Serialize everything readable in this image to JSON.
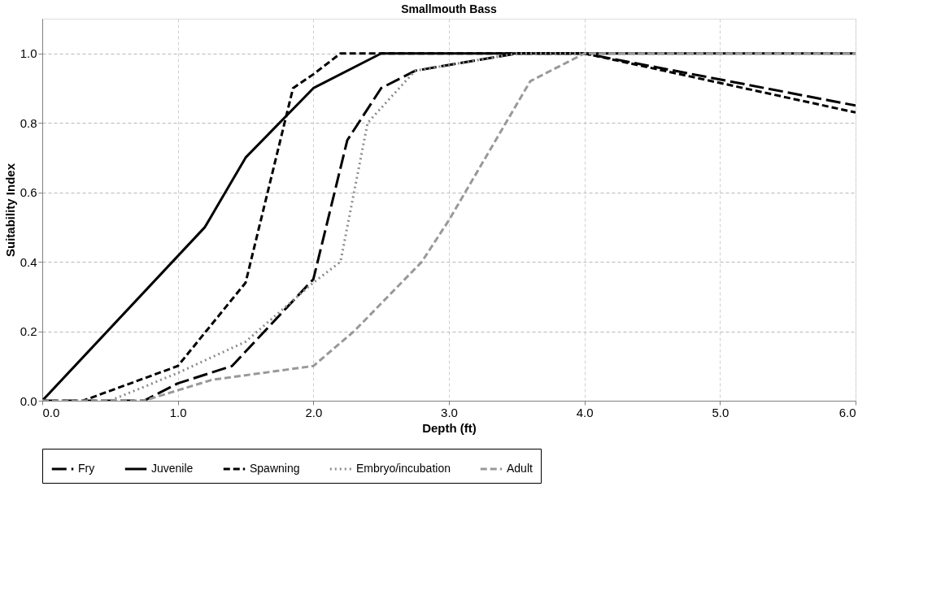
{
  "chart_data": {
    "type": "line",
    "title": "Smallmouth Bass",
    "xlabel": "Depth (ft)",
    "ylabel": "Suitability Index",
    "xlim": [
      0,
      6
    ],
    "ylim": [
      0,
      1.1
    ],
    "xticks": [
      {
        "value": 0,
        "label": "0.0"
      },
      {
        "value": 1,
        "label": "1.0"
      },
      {
        "value": 2,
        "label": "2.0"
      },
      {
        "value": 3,
        "label": "3.0"
      },
      {
        "value": 4,
        "label": "4.0"
      },
      {
        "value": 5,
        "label": "5.0"
      },
      {
        "value": 6,
        "label": "6.0"
      }
    ],
    "yticks": [
      {
        "value": 0,
        "label": "0.0"
      },
      {
        "value": 0.2,
        "label": "0.2"
      },
      {
        "value": 0.4,
        "label": "0.4"
      },
      {
        "value": 0.6,
        "label": "0.6"
      },
      {
        "value": 0.8,
        "label": "0.8"
      },
      {
        "value": 1,
        "label": "1.0"
      }
    ],
    "grid": true,
    "legend": "bottom",
    "marker": "none",
    "series": [
      {
        "name": "Fry",
        "color": "#000000",
        "line_style": "longdash",
        "x": [
          0,
          0.75,
          1.0,
          1.4,
          2.0,
          2.25,
          2.5,
          2.75,
          3.5,
          4.0,
          6.0
        ],
        "values": [
          0,
          0,
          0.05,
          0.1,
          0.35,
          0.75,
          0.9,
          0.95,
          1.0,
          1.0,
          0.85
        ]
      },
      {
        "name": "Juvenile",
        "color": "#000000",
        "line_style": "solid",
        "x": [
          0,
          1.2,
          1.5,
          2.0,
          2.5,
          6.0
        ],
        "values": [
          0,
          0.5,
          0.7,
          0.9,
          1.0,
          1.0
        ]
      },
      {
        "name": "Spawning",
        "color": "#000000",
        "line_style": "dashed",
        "x": [
          0,
          0.3,
          1.0,
          1.5,
          1.85,
          2.0,
          2.2,
          4.0,
          6.0
        ],
        "values": [
          0,
          0,
          0.1,
          0.34,
          0.9,
          0.94,
          1.0,
          1.0,
          0.83
        ]
      },
      {
        "name": "Embryo/incubation",
        "color": "#8c8c8c",
        "line_style": "dotted",
        "x": [
          0,
          0.5,
          1.0,
          1.5,
          2.0,
          2.2,
          2.4,
          2.75,
          3.5,
          6.0
        ],
        "values": [
          0,
          0,
          0.08,
          0.17,
          0.34,
          0.4,
          0.8,
          0.95,
          1.0,
          1.0
        ]
      },
      {
        "name": "Adult",
        "color": "#999999",
        "line_style": "dashed",
        "x": [
          0,
          0.75,
          1.0,
          1.25,
          2.0,
          2.3,
          2.8,
          3.0,
          3.6,
          4.0,
          6.0
        ],
        "values": [
          0,
          0,
          0.03,
          0.06,
          0.1,
          0.2,
          0.4,
          0.52,
          0.92,
          1.0,
          1.0
        ]
      }
    ]
  }
}
